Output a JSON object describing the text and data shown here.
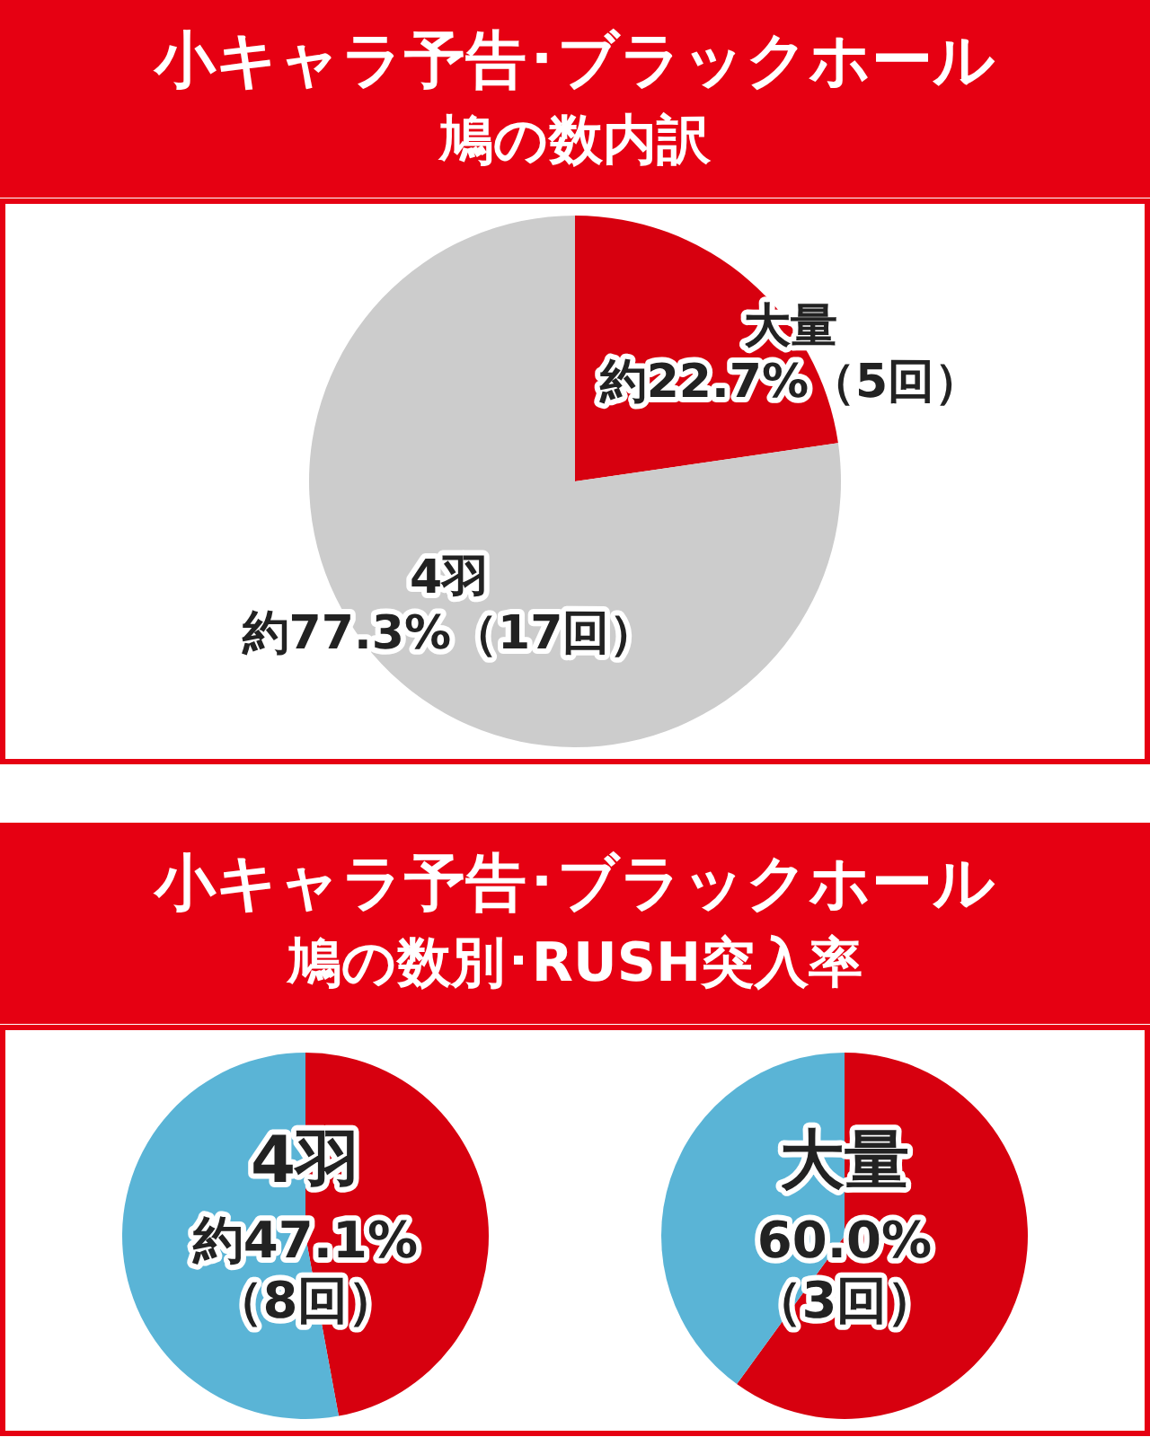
{
  "chart_data": [
    {
      "type": "pie",
      "title": "小キャラ予告･ブラックホール",
      "subtitle": "鳩の数内訳",
      "categories": [
        "大量",
        "4羽"
      ],
      "values": [
        22.7,
        77.3
      ],
      "colors": [
        "#d7000f",
        "#cccccc"
      ],
      "value_labels": [
        "約22.7%（5回）",
        "約77.3%（17回）"
      ]
    },
    {
      "type": "pie",
      "title": "小キャラ予告･ブラックホール",
      "subtitle": "鳩の数別･RUSH突入率",
      "annotations": [
        "4羽"
      ],
      "categories": [
        null,
        null
      ],
      "values": [
        47.1,
        52.9
      ],
      "colors": [
        "#d7000f",
        "#5ab4d6"
      ],
      "value_labels": [
        "約47.1%\n（8回）",
        null
      ]
    },
    {
      "type": "pie",
      "annotations": [
        "大量"
      ],
      "categories": [
        null,
        null
      ],
      "values": [
        60.0,
        40.0
      ],
      "colors": [
        "#d7000f",
        "#5ab4d6"
      ],
      "value_labels": [
        "60.0%\n（3回）",
        null
      ]
    }
  ]
}
